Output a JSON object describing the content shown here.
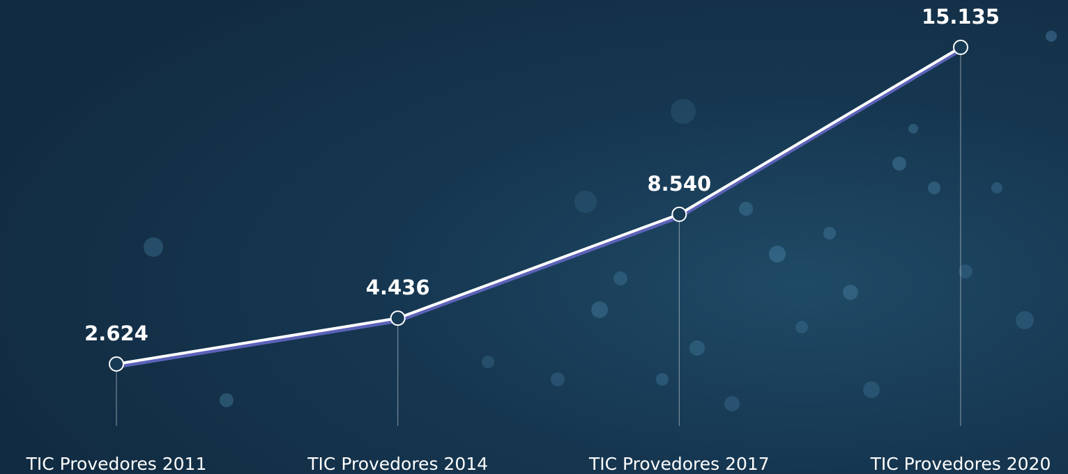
{
  "chart_data": {
    "type": "line",
    "categories": [
      "TIC Provedores 2011",
      "TIC Provedores 2014",
      "TIC Provedores 2017",
      "TIC Provedores 2020"
    ],
    "series": [
      {
        "color": "#ffffff",
        "values": [
          2624,
          4436,
          8540,
          15135
        ],
        "value_labels": [
          "2.624",
          "4.436",
          "8.540",
          "15.135"
        ]
      }
    ]
  }
}
